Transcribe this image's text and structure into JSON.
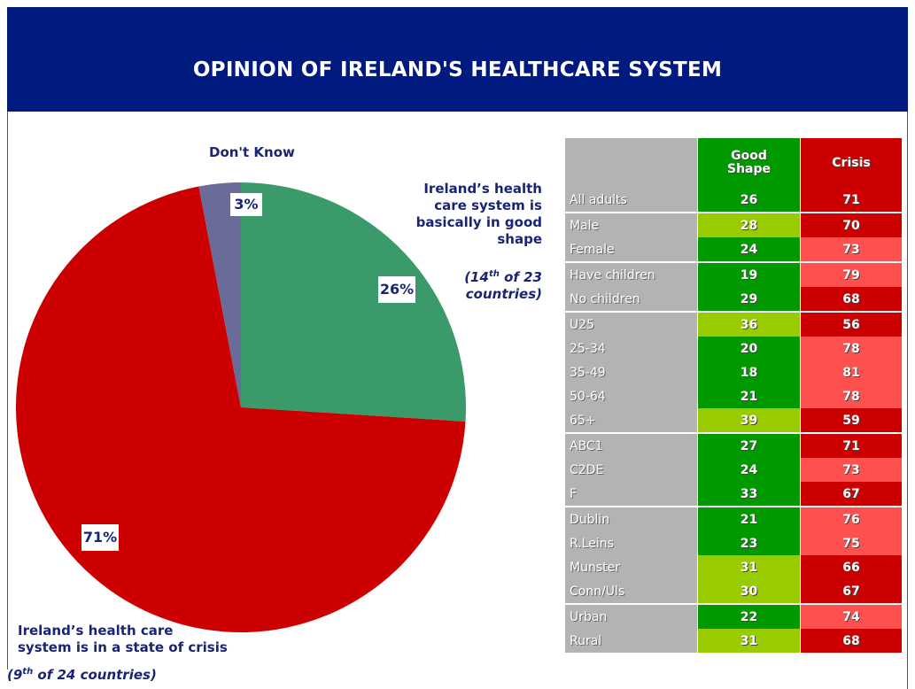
{
  "title": "OPINION OF IRELAND'S HEALTHCARE SYSTEM",
  "pie": {
    "dont_know_label": "Don't Know",
    "good_label_lines": [
      "Ireland’s health",
      "care system is",
      "basically in good",
      "shape"
    ],
    "good_rank_pre": "(14",
    "good_rank_sup": "th",
    "good_rank_post": " of 23",
    "good_rank_line2": "countries)",
    "crisis_label_lines": [
      "Ireland’s health care",
      "system is in a state of crisis"
    ],
    "crisis_rank_pre": "(9",
    "crisis_rank_sup": "th",
    "crisis_rank_post": " of 24 countries)",
    "pct_good": "26%",
    "pct_crisis": "71%",
    "pct_dk": "3%"
  },
  "chart_data": [
    {
      "type": "pie",
      "categories": [
        "Ireland’s health care system is basically in good shape",
        "Ireland’s health care system is in a state of crisis",
        "Don't Know"
      ],
      "values": [
        26,
        71,
        3
      ],
      "colors": [
        "#3a9a69",
        "#cc0000",
        "#6b6b9a"
      ]
    },
    {
      "type": "table",
      "columns": [
        "",
        "Good Shape",
        "Crisis"
      ],
      "column_header_lines": {
        "good": [
          "Good",
          "Shape"
        ],
        "crisis": "Crisis"
      },
      "rows": [
        {
          "label": "All adults",
          "good": 26,
          "crisis": 71,
          "good_shade": "dark",
          "crisis_shade": "dark",
          "group_start": false
        },
        {
          "label": "Male",
          "good": 28,
          "crisis": 70,
          "good_shade": "light",
          "crisis_shade": "dark",
          "group_start": true
        },
        {
          "label": "Female",
          "good": 24,
          "crisis": 73,
          "good_shade": "dark",
          "crisis_shade": "light",
          "group_start": false
        },
        {
          "label": "Have children",
          "good": 19,
          "crisis": 79,
          "good_shade": "dark",
          "crisis_shade": "light",
          "group_start": true
        },
        {
          "label": "No children",
          "good": 29,
          "crisis": 68,
          "good_shade": "dark",
          "crisis_shade": "dark",
          "group_start": false
        },
        {
          "label": "U25",
          "good": 36,
          "crisis": 56,
          "good_shade": "light",
          "crisis_shade": "dark",
          "group_start": true
        },
        {
          "label": "25-34",
          "good": 20,
          "crisis": 78,
          "good_shade": "dark",
          "crisis_shade": "light",
          "group_start": false
        },
        {
          "label": "35-49",
          "good": 18,
          "crisis": 81,
          "good_shade": "dark",
          "crisis_shade": "light",
          "group_start": false
        },
        {
          "label": "50-64",
          "good": 21,
          "crisis": 78,
          "good_shade": "dark",
          "crisis_shade": "light",
          "group_start": false
        },
        {
          "label": "65+",
          "good": 39,
          "crisis": 59,
          "good_shade": "light",
          "crisis_shade": "dark",
          "group_start": false
        },
        {
          "label": "ABC1",
          "good": 27,
          "crisis": 71,
          "good_shade": "dark",
          "crisis_shade": "dark",
          "group_start": true
        },
        {
          "label": "C2DE",
          "good": 24,
          "crisis": 73,
          "good_shade": "dark",
          "crisis_shade": "light",
          "group_start": false
        },
        {
          "label": "F",
          "good": 33,
          "crisis": 67,
          "good_shade": "dark",
          "crisis_shade": "dark",
          "group_start": false
        },
        {
          "label": "Dublin",
          "good": 21,
          "crisis": 76,
          "good_shade": "dark",
          "crisis_shade": "light",
          "group_start": true
        },
        {
          "label": "R.Leins",
          "good": 23,
          "crisis": 75,
          "good_shade": "dark",
          "crisis_shade": "light",
          "group_start": false
        },
        {
          "label": "Munster",
          "good": 31,
          "crisis": 66,
          "good_shade": "light",
          "crisis_shade": "dark",
          "group_start": false
        },
        {
          "label": "Conn/Uls",
          "good": 30,
          "crisis": 67,
          "good_shade": "light",
          "crisis_shade": "dark",
          "group_start": false
        },
        {
          "label": "Urban",
          "good": 22,
          "crisis": 74,
          "good_shade": "dark",
          "crisis_shade": "light",
          "group_start": true
        },
        {
          "label": "Rural",
          "good": 31,
          "crisis": 68,
          "good_shade": "light",
          "crisis_shade": "dark",
          "group_start": false
        }
      ]
    }
  ],
  "colors": {
    "header_bg": "#001a80",
    "navy_text": "#1a2475",
    "good_dark": "#009900",
    "good_light": "#99cc00",
    "crisis_dark": "#cc0000",
    "crisis_light": "#ff5050",
    "label_bg": "#b3b3b3"
  }
}
